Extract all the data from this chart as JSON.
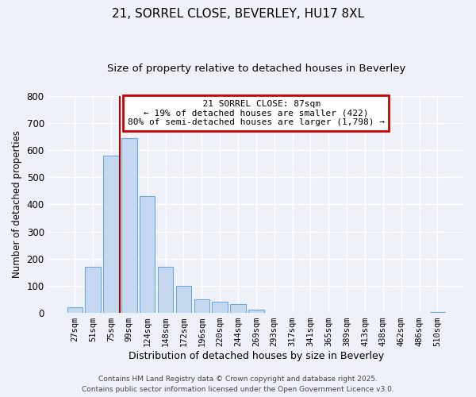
{
  "title": "21, SORREL CLOSE, BEVERLEY, HU17 8XL",
  "subtitle": "Size of property relative to detached houses in Beverley",
  "xlabel": "Distribution of detached houses by size in Beverley",
  "ylabel": "Number of detached properties",
  "bar_labels": [
    "27sqm",
    "51sqm",
    "75sqm",
    "99sqm",
    "124sqm",
    "148sqm",
    "172sqm",
    "196sqm",
    "220sqm",
    "244sqm",
    "269sqm",
    "293sqm",
    "317sqm",
    "341sqm",
    "365sqm",
    "389sqm",
    "413sqm",
    "438sqm",
    "462sqm",
    "486sqm",
    "510sqm"
  ],
  "bar_values": [
    20,
    170,
    578,
    643,
    430,
    170,
    100,
    50,
    40,
    33,
    12,
    0,
    0,
    0,
    0,
    0,
    0,
    0,
    0,
    0,
    2
  ],
  "bar_color": "#c5d8f0",
  "bar_edge_color": "#6ea8d8",
  "vline_x_idx": 2,
  "vline_color": "#aa0000",
  "annotation_title": "21 SORREL CLOSE: 87sqm",
  "annotation_line1": "← 19% of detached houses are smaller (422)",
  "annotation_line2": "80% of semi-detached houses are larger (1,798) →",
  "annotation_box_color": "#cc0000",
  "ylim": [
    0,
    800
  ],
  "yticks": [
    0,
    100,
    200,
    300,
    400,
    500,
    600,
    700,
    800
  ],
  "footer1": "Contains HM Land Registry data © Crown copyright and database right 2025.",
  "footer2": "Contains public sector information licensed under the Open Government Licence v3.0.",
  "bg_color": "#eef2f8",
  "grid_color": "#ffffff"
}
